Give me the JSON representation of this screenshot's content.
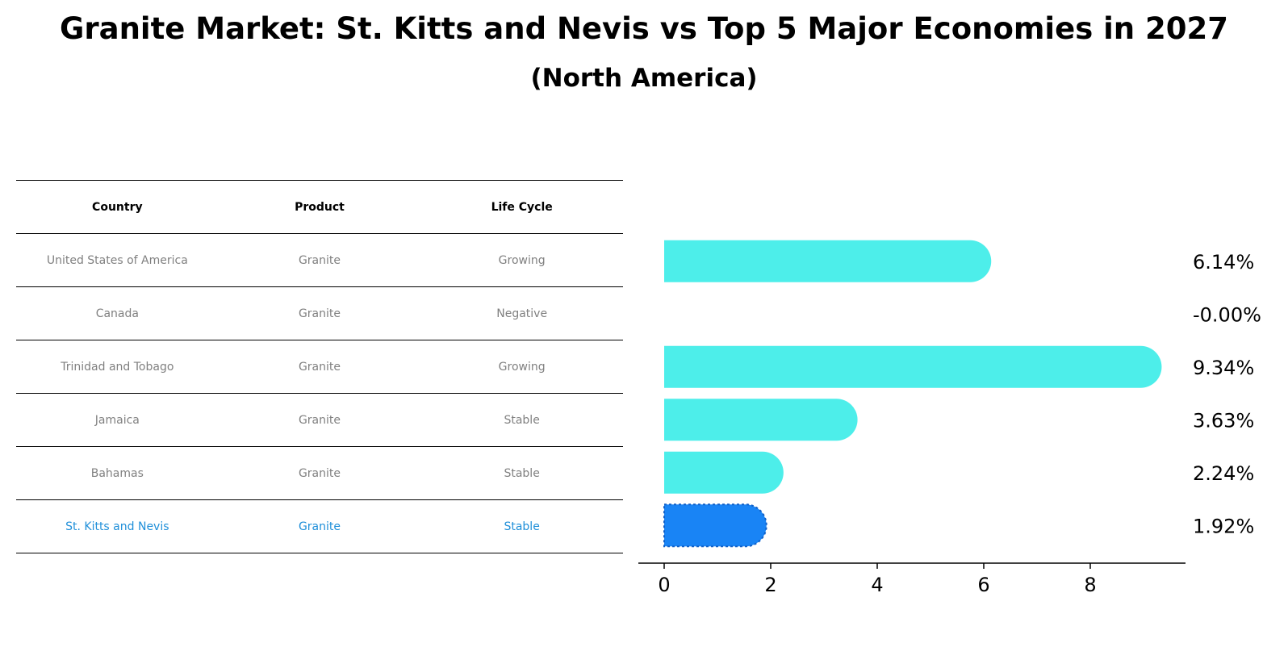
{
  "title": "Granite Market: St. Kitts and Nevis vs Top 5 Major Economies in 2027",
  "subtitle": "(North America)",
  "colors": {
    "bar": "#4deeea",
    "highlight_bar": "#1984f5",
    "highlight_text": "#1f8fd9",
    "table_text": "#808080"
  },
  "table": {
    "headers": [
      "Country",
      "Product",
      "Life Cycle"
    ],
    "rows": [
      {
        "country": "United States of America",
        "product": "Granite",
        "life_cycle": "Growing"
      },
      {
        "country": "Canada",
        "product": "Granite",
        "life_cycle": "Negative"
      },
      {
        "country": "Trinidad and Tobago",
        "product": "Granite",
        "life_cycle": "Growing"
      },
      {
        "country": "Jamaica",
        "product": "Granite",
        "life_cycle": "Stable"
      },
      {
        "country": "Bahamas",
        "product": "Granite",
        "life_cycle": "Stable"
      },
      {
        "country": "St. Kitts and Nevis",
        "product": "Granite",
        "life_cycle": "Stable",
        "highlight": true
      }
    ]
  },
  "chart_data": {
    "type": "bar",
    "orientation": "horizontal",
    "categories": [
      "United States of America",
      "Canada",
      "Trinidad and Tobago",
      "Jamaica",
      "Bahamas",
      "St. Kitts and Nevis"
    ],
    "values": [
      6.14,
      -0.0,
      9.34,
      3.63,
      2.24,
      1.92
    ],
    "value_labels": [
      "6.14%",
      "-0.00%",
      "9.34%",
      "3.63%",
      "2.24%",
      "1.92%"
    ],
    "highlight_index": 5,
    "xticks": [
      0,
      2,
      4,
      6,
      8
    ],
    "xlim": [
      -0.5,
      9.8
    ],
    "xlabel": "",
    "ylabel": "",
    "grid": false
  }
}
